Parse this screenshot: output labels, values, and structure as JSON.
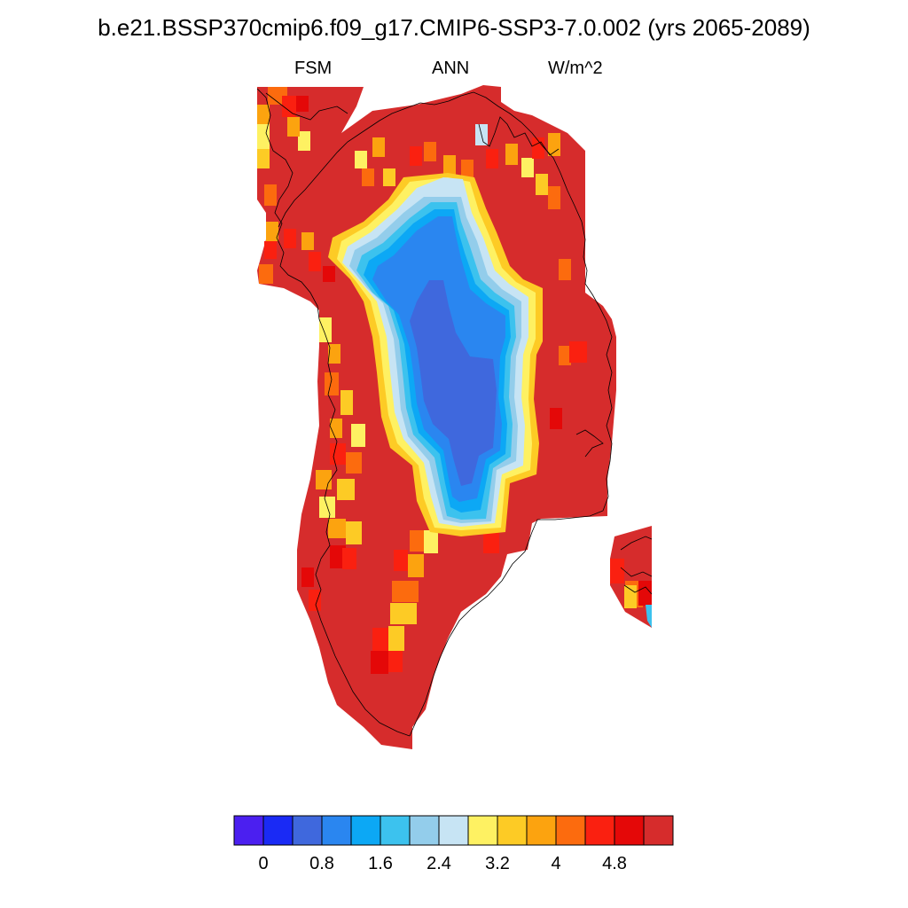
{
  "title": "b.e21.BSSP370cmip6.f09_g17.CMIP6-SSP3-7.0.002 (yrs 2065-2089)",
  "subtitle_left": "FSM",
  "subtitle_center": "ANN",
  "subtitle_right": "W/m^2",
  "colorbar": {
    "colors": [
      "#4b1ff0",
      "#1a2af5",
      "#3f68dd",
      "#2a86f0",
      "#0ca8f5",
      "#3cc2ee",
      "#93cdeb",
      "#c7e4f4",
      "#fef162",
      "#fdcb25",
      "#fca30f",
      "#fc6b0e",
      "#fa2010",
      "#e40808",
      "#d62c2c"
    ],
    "tick_labels": [
      "0",
      "0.8",
      "1.6",
      "2.4",
      "3.2",
      "4",
      "4.8"
    ]
  },
  "map": {
    "variable": "FSM",
    "units": "W/m^2",
    "period": "ANN",
    "region": "Greenland"
  }
}
